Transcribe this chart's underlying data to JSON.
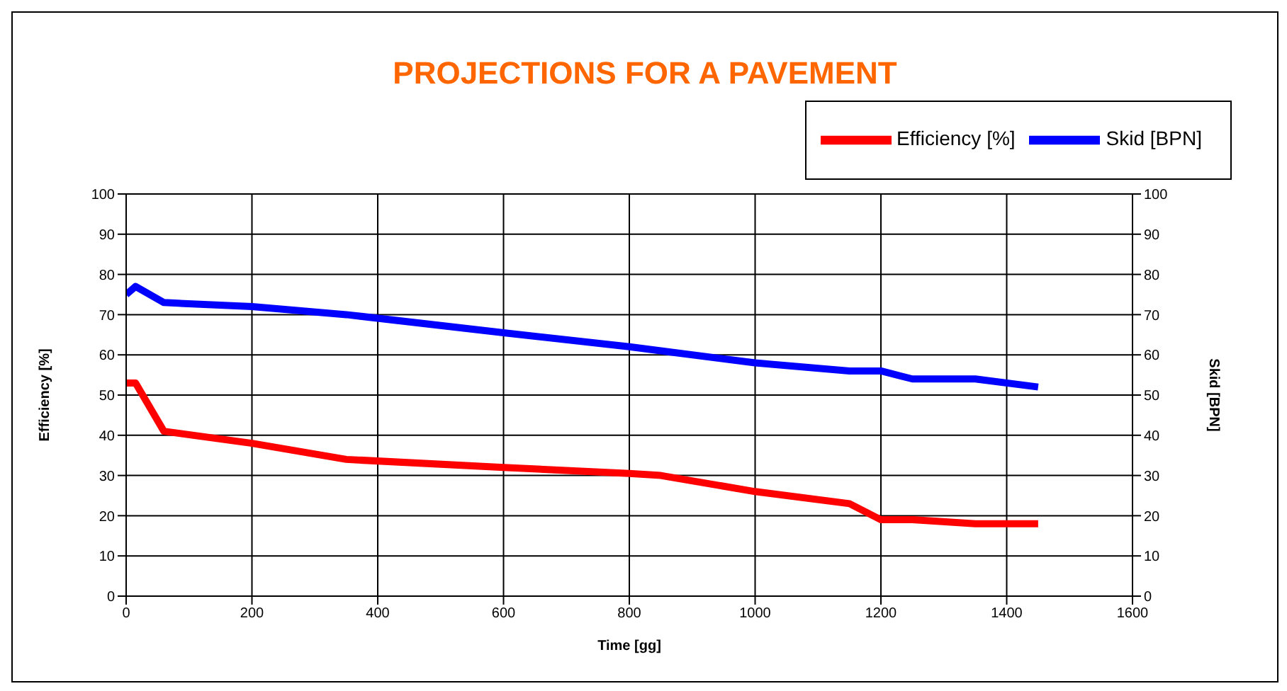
{
  "chart_data": {
    "type": "line",
    "title": "PROJECTIONS FOR A PAVEMENT",
    "xlabel": "Time [gg]",
    "ylabel": "Efficiency [%]",
    "y2label": "Skid [BPN]",
    "x": [
      0,
      15,
      60,
      200,
      350,
      600,
      800,
      850,
      1000,
      1150,
      1200,
      1250,
      1350,
      1450
    ],
    "series": [
      {
        "name": "Efficiency [%]",
        "color": "#ff0000",
        "values": [
          53,
          53,
          41,
          38,
          34,
          32,
          30.5,
          30,
          26,
          23,
          19,
          19,
          18,
          18
        ]
      },
      {
        "name": "Skid [BPN]",
        "color": "#0000ff",
        "axis": "y2",
        "values": [
          75,
          77,
          73,
          72,
          70,
          65.5,
          62,
          61,
          58,
          56,
          56,
          54,
          54,
          52
        ]
      }
    ],
    "xlim": [
      0,
      1600
    ],
    "xticks": [
      0,
      200,
      400,
      600,
      800,
      1000,
      1200,
      1400,
      1600
    ],
    "ylim": [
      0,
      100
    ],
    "yticks": [
      0,
      10,
      20,
      30,
      40,
      50,
      60,
      70,
      80,
      90,
      100
    ],
    "y2lim": [
      0,
      100
    ],
    "y2ticks": [
      0,
      10,
      20,
      30,
      40,
      50,
      60,
      70,
      80,
      90,
      100
    ],
    "grid": true,
    "legend": "top right",
    "marker": "none",
    "line_style": "solid"
  }
}
